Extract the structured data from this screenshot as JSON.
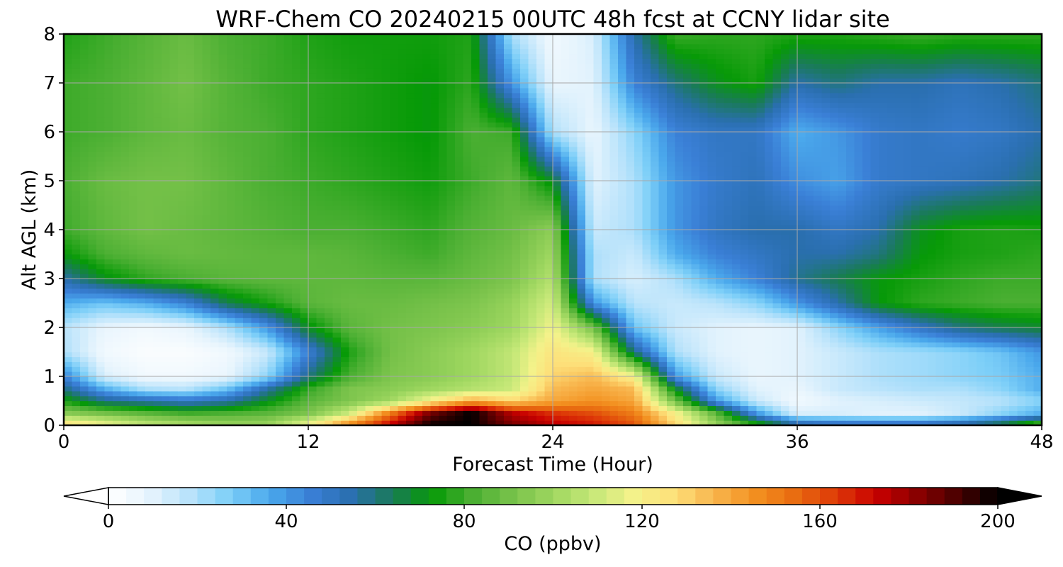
{
  "chart_data": {
    "type": "heatmap",
    "title": "WRF-Chem CO  20240215 00UTC 48h fcst at CCNY lidar site",
    "xlabel": "Forecast Time (Hour)",
    "ylabel": "Alt AGL (km)",
    "xlim": [
      0,
      48
    ],
    "ylim": [
      0,
      8
    ],
    "xticks": [
      0,
      12,
      24,
      36,
      48
    ],
    "yticks": [
      0,
      1,
      2,
      3,
      4,
      5,
      6,
      7,
      8
    ],
    "grid": true,
    "colorbar": {
      "label": "CO  (ppbv)",
      "range": [
        0,
        200
      ],
      "ticks": [
        0,
        40,
        80,
        120,
        160,
        200
      ],
      "extend": "both",
      "colors": [
        "#ffffff",
        "#e6f4fd",
        "#b9e3fb",
        "#7dcff8",
        "#4aa8ec",
        "#3a7fd6",
        "#2a6fb0",
        "#1a7a5a",
        "#079a07",
        "#4aaf32",
        "#78c24a",
        "#9fd760",
        "#c6e878",
        "#f4f28a",
        "#fde07a",
        "#f8b44c",
        "#f39020",
        "#e86b10",
        "#de3a08",
        "#c80000",
        "#8a0000",
        "#4a0000",
        "#000000"
      ]
    },
    "x": [
      0,
      2,
      4,
      6,
      8,
      10,
      12,
      14,
      16,
      18,
      20,
      22,
      24,
      26,
      28,
      30,
      32,
      34,
      36,
      38,
      40,
      42,
      44,
      46,
      48
    ],
    "y": [
      0,
      0.25,
      0.5,
      0.75,
      1,
      1.5,
      2,
      2.5,
      3,
      3.5,
      4,
      5,
      6,
      7,
      8
    ],
    "z": [
      [
        130,
        120,
        110,
        105,
        100,
        100,
        120,
        150,
        175,
        200,
        200,
        185,
        175,
        170,
        160,
        130,
        100,
        80,
        60,
        55,
        55,
        55,
        60,
        70,
        90
      ],
      [
        95,
        90,
        85,
        80,
        82,
        85,
        92,
        110,
        150,
        185,
        200,
        175,
        165,
        160,
        150,
        120,
        85,
        40,
        12,
        12,
        10,
        10,
        15,
        25,
        35
      ],
      [
        75,
        60,
        55,
        50,
        55,
        70,
        85,
        92,
        100,
        120,
        140,
        130,
        140,
        145,
        140,
        90,
        40,
        15,
        5,
        10,
        12,
        14,
        16,
        18,
        25
      ],
      [
        60,
        35,
        20,
        18,
        30,
        55,
        78,
        92,
        95,
        100,
        105,
        110,
        135,
        140,
        135,
        70,
        25,
        10,
        8,
        15,
        18,
        20,
        20,
        25,
        35
      ],
      [
        45,
        12,
        5,
        5,
        8,
        25,
        60,
        82,
        92,
        95,
        100,
        108,
        130,
        135,
        120,
        40,
        15,
        8,
        10,
        15,
        20,
        22,
        25,
        28,
        35
      ],
      [
        20,
        5,
        2,
        2,
        5,
        15,
        45,
        75,
        90,
        95,
        100,
        108,
        125,
        120,
        60,
        20,
        10,
        8,
        10,
        15,
        20,
        22,
        25,
        30,
        40
      ],
      [
        18,
        8,
        5,
        8,
        20,
        40,
        70,
        85,
        90,
        92,
        95,
        100,
        118,
        90,
        30,
        15,
        10,
        8,
        10,
        25,
        38,
        50,
        60,
        65,
        68
      ],
      [
        35,
        30,
        35,
        45,
        65,
        75,
        85,
        88,
        88,
        90,
        92,
        98,
        112,
        40,
        18,
        15,
        18,
        25,
        40,
        55,
        72,
        78,
        80,
        82,
        82
      ],
      [
        55,
        70,
        78,
        82,
        85,
        86,
        86,
        86,
        85,
        85,
        88,
        92,
        105,
        20,
        12,
        20,
        35,
        45,
        58,
        65,
        72,
        75,
        78,
        80,
        80
      ],
      [
        72,
        82,
        86,
        88,
        87,
        86,
        86,
        85,
        82,
        80,
        86,
        90,
        100,
        20,
        15,
        35,
        45,
        50,
        55,
        55,
        60,
        72,
        75,
        76,
        78
      ],
      [
        80,
        86,
        90,
        88,
        86,
        84,
        82,
        82,
        80,
        78,
        84,
        88,
        96,
        15,
        20,
        40,
        50,
        55,
        55,
        50,
        55,
        70,
        75,
        76,
        75
      ],
      [
        82,
        88,
        90,
        90,
        86,
        82,
        80,
        78,
        76,
        74,
        80,
        86,
        70,
        10,
        20,
        40,
        48,
        52,
        42,
        38,
        48,
        50,
        52,
        55,
        60
      ],
      [
        80,
        82,
        86,
        88,
        84,
        82,
        78,
        76,
        74,
        72,
        82,
        80,
        20,
        8,
        25,
        45,
        50,
        50,
        35,
        40,
        48,
        50,
        48,
        50,
        55
      ],
      [
        80,
        82,
        86,
        90,
        84,
        80,
        78,
        76,
        74,
        72,
        78,
        40,
        8,
        10,
        45,
        60,
        70,
        75,
        55,
        60,
        55,
        55,
        52,
        55,
        60
      ],
      [
        76,
        80,
        84,
        88,
        82,
        80,
        76,
        74,
        74,
        74,
        76,
        20,
        5,
        12,
        55,
        80,
        78,
        78,
        76,
        76,
        78,
        80,
        78,
        78,
        78
      ]
    ]
  }
}
